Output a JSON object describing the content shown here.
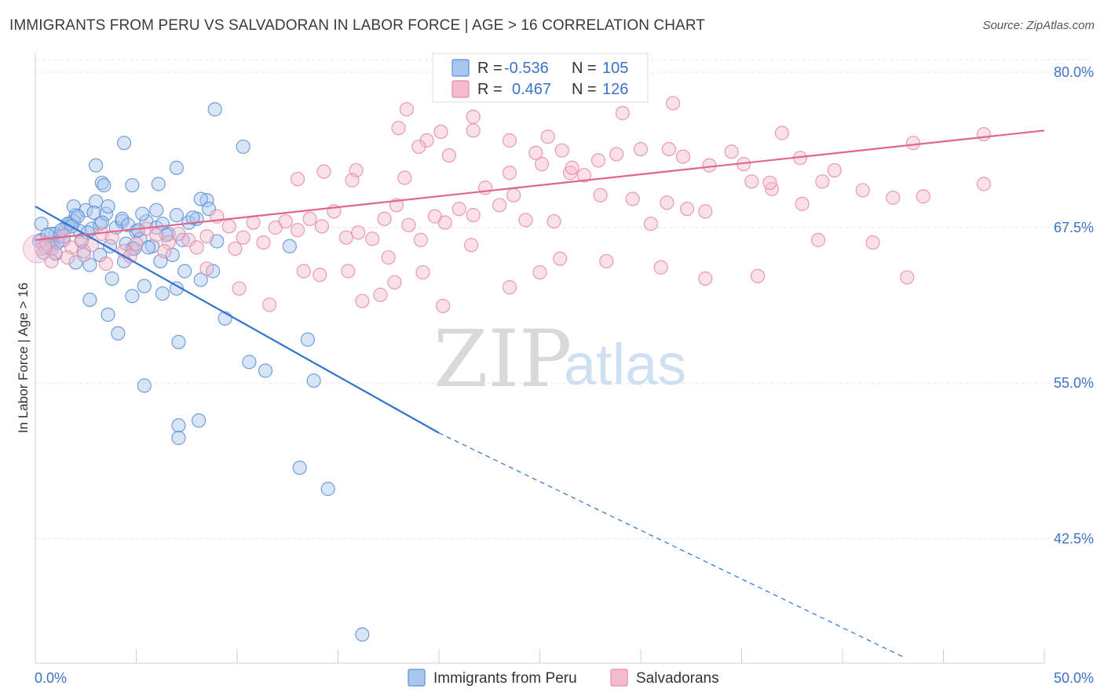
{
  "title": "IMMIGRANTS FROM PERU VS SALVADORAN IN LABOR FORCE | AGE > 16 CORRELATION CHART",
  "source": "Source: ZipAtlas.com",
  "watermark": {
    "zip": "ZIP",
    "atlas": "atlas"
  },
  "colors": {
    "blue": "#5b8fd6",
    "blue_fill": "#a9c6ee",
    "blue_line": "#2f72d1",
    "pink": "#e58aa8",
    "pink_fill": "#f5bccd",
    "pink_line": "#e0668f",
    "tick_label": "#3b73c8"
  },
  "chart_data": {
    "type": "scatter",
    "ylabel": "In Labor Force | Age > 16",
    "xlim": [
      0,
      50
    ],
    "ylim": [
      32.5,
      81.5
    ],
    "x_tick_labels": [
      "0.0%",
      "50.0%"
    ],
    "y_ticks": [
      42.5,
      55.0,
      67.5,
      80.0
    ],
    "y_tick_labels": [
      "42.5%",
      "55.0%",
      "67.5%",
      "80.0%"
    ],
    "grid": true,
    "legend_top": [
      {
        "r_label": "R =",
        "r_value": "-0.536",
        "n_label": "N =",
        "n_value": "105",
        "series": "blue"
      },
      {
        "r_label": "R =",
        "r_value": "0.467",
        "n_label": "N =",
        "n_value": "126",
        "series": "pink"
      }
    ],
    "series": [
      {
        "name": "Immigrants from Peru",
        "color": "blue",
        "trend": {
          "x": [
            0,
            20
          ],
          "y": [
            69.2,
            51.0
          ],
          "dashed_to": [
            43,
            33.0
          ]
        },
        "points": [
          [
            0.3,
            66.5
          ],
          [
            0.5,
            66.2
          ],
          [
            0.7,
            66.0
          ],
          [
            0.4,
            65.5
          ],
          [
            0.8,
            65.8
          ],
          [
            1.0,
            67.0
          ],
          [
            1.2,
            66.8
          ],
          [
            1.5,
            67.5
          ],
          [
            1.7,
            67.8
          ],
          [
            2.0,
            68.5
          ],
          [
            2.2,
            67.2
          ],
          [
            2.5,
            68.9
          ],
          [
            1.9,
            68.0
          ],
          [
            2.3,
            66.5
          ],
          [
            2.8,
            67.4
          ],
          [
            3.0,
            69.6
          ],
          [
            3.2,
            67.8
          ],
          [
            3.5,
            68.6
          ],
          [
            3.7,
            66.0
          ],
          [
            4.0,
            67.5
          ],
          [
            4.3,
            68.0
          ],
          [
            4.5,
            66.2
          ],
          [
            4.8,
            65.8
          ],
          [
            5.0,
            67.2
          ],
          [
            5.2,
            66.6
          ],
          [
            5.5,
            68.0
          ],
          [
            5.8,
            66.0
          ],
          [
            6.0,
            67.5
          ],
          [
            6.3,
            67.8
          ],
          [
            6.6,
            67.0
          ],
          [
            7.0,
            68.5
          ],
          [
            7.3,
            66.5
          ],
          [
            7.6,
            67.9
          ],
          [
            8.0,
            68.2
          ],
          [
            8.5,
            69.7
          ],
          [
            9.0,
            66.4
          ],
          [
            1.0,
            65.4
          ],
          [
            1.4,
            66.5
          ],
          [
            2.0,
            64.7
          ],
          [
            2.4,
            65.6
          ],
          [
            2.7,
            64.5
          ],
          [
            3.2,
            65.3
          ],
          [
            3.8,
            63.4
          ],
          [
            4.4,
            64.8
          ],
          [
            4.9,
            65.8
          ],
          [
            5.6,
            65.9
          ],
          [
            6.2,
            64.8
          ],
          [
            6.8,
            65.3
          ],
          [
            7.4,
            64.0
          ],
          [
            8.2,
            63.3
          ],
          [
            2.7,
            61.7
          ],
          [
            3.6,
            60.5
          ],
          [
            4.1,
            59.0
          ],
          [
            4.8,
            62.0
          ],
          [
            5.4,
            62.8
          ],
          [
            6.3,
            62.2
          ],
          [
            7.0,
            62.6
          ],
          [
            8.8,
            64.0
          ],
          [
            9.4,
            60.2
          ],
          [
            10.6,
            56.7
          ],
          [
            11.4,
            56.0
          ],
          [
            12.6,
            66.0
          ],
          [
            13.5,
            58.5
          ],
          [
            13.8,
            55.2
          ],
          [
            7.1,
            58.3
          ],
          [
            5.4,
            54.8
          ],
          [
            7.1,
            51.6
          ],
          [
            7.1,
            50.6
          ],
          [
            8.1,
            52.0
          ],
          [
            13.1,
            48.2
          ],
          [
            14.5,
            46.5
          ],
          [
            16.2,
            34.8
          ],
          [
            8.9,
            77.0
          ],
          [
            4.4,
            74.3
          ],
          [
            10.3,
            74.0
          ],
          [
            3.0,
            72.5
          ],
          [
            7.0,
            72.3
          ],
          [
            3.3,
            71.1
          ],
          [
            4.8,
            70.9
          ],
          [
            6.1,
            71.0
          ],
          [
            3.4,
            70.9
          ],
          [
            8.2,
            69.8
          ],
          [
            1.9,
            69.2
          ],
          [
            0.3,
            67.8
          ],
          [
            0.8,
            67.0
          ],
          [
            1.6,
            67.8
          ],
          [
            2.1,
            68.4
          ],
          [
            2.9,
            68.7
          ],
          [
            3.6,
            69.2
          ],
          [
            4.3,
            68.2
          ],
          [
            5.3,
            68.6
          ],
          [
            6.0,
            68.9
          ],
          [
            0.5,
            65.9
          ],
          [
            0.2,
            66.4
          ],
          [
            0.6,
            66.9
          ],
          [
            1.1,
            66.3
          ],
          [
            1.3,
            67.3
          ],
          [
            1.8,
            67.6
          ],
          [
            2.6,
            67.1
          ],
          [
            3.3,
            67.9
          ],
          [
            4.6,
            67.7
          ],
          [
            5.1,
            67.3
          ],
          [
            6.5,
            66.9
          ],
          [
            7.8,
            68.3
          ],
          [
            8.6,
            69.0
          ]
        ]
      },
      {
        "name": "Salvadorans",
        "color": "pink",
        "trend": {
          "x": [
            0,
            50
          ],
          "y": [
            66.5,
            75.3
          ]
        },
        "points": [
          [
            0.3,
            65.8
          ],
          [
            0.6,
            66.2
          ],
          [
            1.0,
            65.5
          ],
          [
            1.4,
            66.8
          ],
          [
            1.8,
            65.9
          ],
          [
            2.3,
            66.4
          ],
          [
            2.8,
            66.1
          ],
          [
            3.3,
            67.0
          ],
          [
            3.8,
            66.7
          ],
          [
            4.4,
            65.6
          ],
          [
            5.0,
            66.2
          ],
          [
            5.5,
            67.4
          ],
          [
            6.0,
            66.9
          ],
          [
            6.6,
            66.3
          ],
          [
            7.1,
            67.0
          ],
          [
            7.6,
            66.5
          ],
          [
            8.0,
            65.9
          ],
          [
            8.5,
            66.8
          ],
          [
            9.0,
            68.4
          ],
          [
            9.6,
            67.6
          ],
          [
            10.3,
            66.7
          ],
          [
            10.8,
            67.9
          ],
          [
            11.3,
            66.3
          ],
          [
            11.9,
            67.5
          ],
          [
            12.4,
            68.0
          ],
          [
            13.0,
            67.3
          ],
          [
            13.6,
            68.2
          ],
          [
            14.2,
            67.6
          ],
          [
            14.8,
            68.8
          ],
          [
            15.4,
            66.7
          ],
          [
            16.0,
            67.1
          ],
          [
            16.7,
            66.6
          ],
          [
            17.3,
            68.2
          ],
          [
            17.9,
            69.3
          ],
          [
            18.5,
            67.7
          ],
          [
            19.1,
            66.5
          ],
          [
            19.8,
            68.4
          ],
          [
            20.3,
            67.9
          ],
          [
            21.0,
            69.0
          ],
          [
            21.7,
            68.5
          ],
          [
            22.3,
            70.7
          ],
          [
            23.0,
            69.3
          ],
          [
            23.7,
            70.1
          ],
          [
            24.3,
            68.1
          ],
          [
            25.1,
            72.6
          ],
          [
            25.7,
            68.0
          ],
          [
            26.5,
            71.9
          ],
          [
            27.2,
            71.7
          ],
          [
            28.0,
            70.1
          ],
          [
            28.8,
            73.4
          ],
          [
            29.6,
            69.8
          ],
          [
            30.5,
            67.8
          ],
          [
            31.3,
            69.5
          ],
          [
            32.3,
            69.0
          ],
          [
            33.2,
            68.8
          ],
          [
            34.5,
            73.6
          ],
          [
            35.5,
            71.2
          ],
          [
            36.5,
            70.6
          ],
          [
            38.0,
            69.4
          ],
          [
            39.0,
            71.2
          ],
          [
            41.0,
            70.5
          ],
          [
            42.5,
            69.9
          ],
          [
            44.0,
            70.0
          ],
          [
            47.0,
            71.0
          ],
          [
            14.1,
            63.7
          ],
          [
            15.5,
            64.0
          ],
          [
            17.5,
            65.1
          ],
          [
            19.2,
            63.9
          ],
          [
            20.2,
            61.2
          ],
          [
            21.6,
            66.1
          ],
          [
            23.5,
            62.7
          ],
          [
            25.0,
            63.9
          ],
          [
            26.0,
            65.0
          ],
          [
            28.3,
            64.8
          ],
          [
            31.0,
            64.3
          ],
          [
            33.2,
            63.4
          ],
          [
            35.8,
            63.6
          ],
          [
            38.8,
            66.5
          ],
          [
            41.5,
            66.3
          ],
          [
            43.2,
            63.5
          ],
          [
            0.8,
            64.8
          ],
          [
            1.6,
            65.1
          ],
          [
            2.4,
            65.3
          ],
          [
            3.5,
            64.6
          ],
          [
            4.7,
            65.2
          ],
          [
            6.4,
            65.6
          ],
          [
            8.5,
            64.2
          ],
          [
            9.9,
            65.8
          ],
          [
            10.1,
            62.6
          ],
          [
            11.6,
            61.3
          ],
          [
            13.3,
            64.0
          ],
          [
            16.2,
            61.6
          ],
          [
            17.1,
            62.1
          ],
          [
            17.8,
            63.1
          ],
          [
            18.0,
            75.5
          ],
          [
            19.4,
            74.5
          ],
          [
            20.1,
            75.2
          ],
          [
            21.7,
            76.4
          ],
          [
            21.7,
            75.3
          ],
          [
            23.5,
            74.5
          ],
          [
            25.4,
            74.8
          ],
          [
            26.1,
            73.7
          ],
          [
            27.9,
            72.9
          ],
          [
            30.0,
            73.8
          ],
          [
            31.4,
            73.8
          ],
          [
            32.1,
            73.2
          ],
          [
            33.4,
            72.5
          ],
          [
            35.1,
            72.6
          ],
          [
            36.4,
            71.1
          ],
          [
            37.9,
            73.1
          ],
          [
            39.6,
            72.1
          ],
          [
            43.5,
            74.3
          ],
          [
            47.0,
            75.0
          ],
          [
            18.4,
            77.0
          ],
          [
            19.0,
            74.0
          ],
          [
            20.5,
            73.3
          ],
          [
            23.5,
            71.9
          ],
          [
            24.8,
            73.5
          ],
          [
            15.9,
            72.1
          ],
          [
            13.0,
            71.4
          ],
          [
            14.3,
            72.0
          ],
          [
            15.7,
            71.3
          ],
          [
            18.3,
            71.5
          ],
          [
            31.6,
            77.5
          ],
          [
            29.1,
            76.7
          ],
          [
            26.6,
            72.3
          ],
          [
            37.0,
            75.1
          ]
        ]
      }
    ]
  },
  "bottom_legend": [
    {
      "label": "Immigrants from Peru",
      "color": "blue"
    },
    {
      "label": "Salvadorans",
      "color": "pink"
    }
  ]
}
